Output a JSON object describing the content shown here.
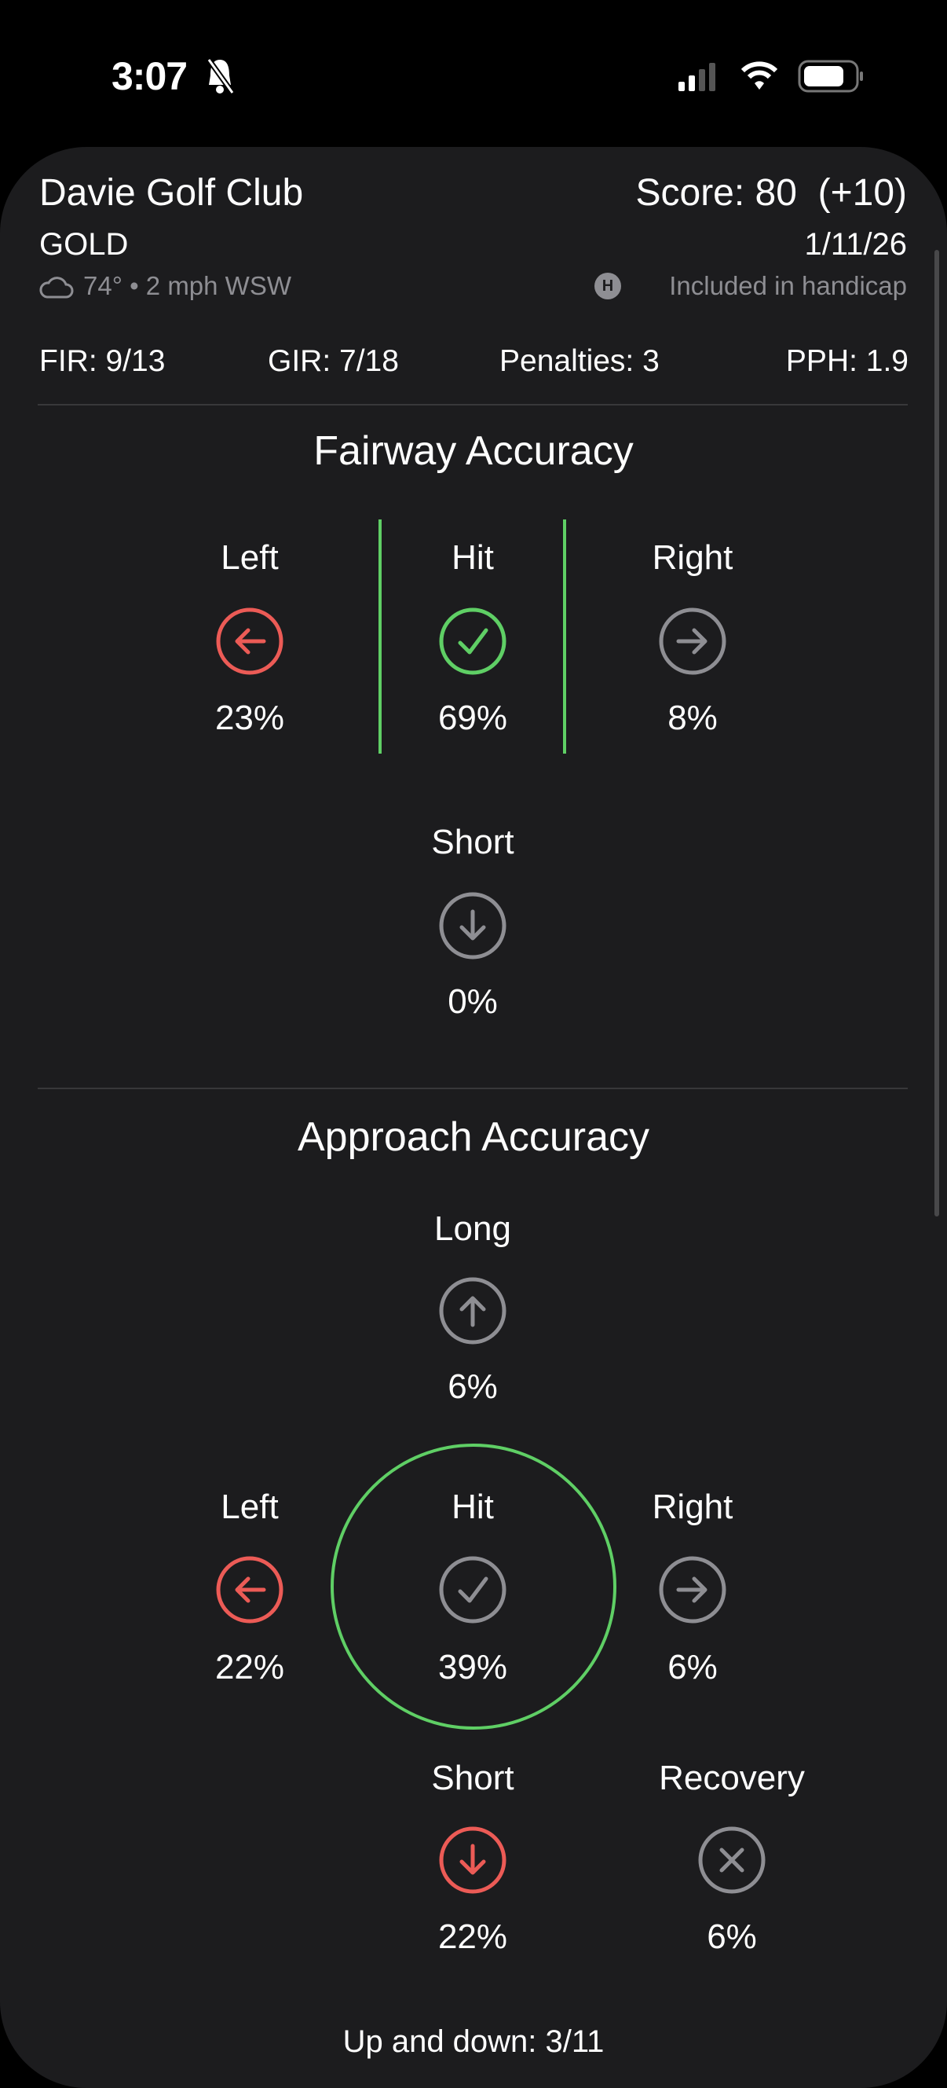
{
  "status_bar": {
    "time": "3:07",
    "icons": [
      "bell-slash-icon",
      "cellular-signal-icon",
      "wifi-icon",
      "battery-icon"
    ]
  },
  "colors": {
    "background": "#1c1c1e",
    "red": "#ec5b56",
    "green": "#5fcf65",
    "gray": "#8e8e93"
  },
  "header": {
    "course": "Davie Golf Club",
    "score": "Score: 80  (+10)",
    "tee": "GOLD",
    "date": "1/11/26",
    "weather": "74° • 2 mph WSW",
    "handicap_badge": "H",
    "handicap": "Included in handicap"
  },
  "stats": {
    "fir": "FIR: 9/13",
    "gir": "GIR: 7/18",
    "penalties": "Penalties: 3",
    "pph": "PPH: 1.9"
  },
  "fairway": {
    "title": "Fairway Accuracy",
    "left": {
      "label": "Left",
      "value": "23%",
      "icon": "arrow-left-icon",
      "color": "red"
    },
    "hit": {
      "label": "Hit",
      "value": "69%",
      "icon": "checkmark-icon",
      "color": "green"
    },
    "right": {
      "label": "Right",
      "value": "8%",
      "icon": "arrow-right-icon",
      "color": "gray"
    },
    "short": {
      "label": "Short",
      "value": "0%",
      "icon": "arrow-down-icon",
      "color": "gray"
    }
  },
  "approach": {
    "title": "Approach Accuracy",
    "long": {
      "label": "Long",
      "value": "6%",
      "icon": "arrow-up-icon",
      "color": "gray"
    },
    "left": {
      "label": "Left",
      "value": "22%",
      "icon": "arrow-left-icon",
      "color": "red"
    },
    "hit": {
      "label": "Hit",
      "value": "39%",
      "icon": "checkmark-icon",
      "color": "gray"
    },
    "right": {
      "label": "Right",
      "value": "6%",
      "icon": "arrow-right-icon",
      "color": "gray"
    },
    "short": {
      "label": "Short",
      "value": "22%",
      "icon": "arrow-down-icon",
      "color": "red"
    },
    "recovery": {
      "label": "Recovery",
      "value": "6%",
      "icon": "x-icon",
      "color": "gray"
    },
    "up_and_down": "Up and down: 3/11"
  }
}
